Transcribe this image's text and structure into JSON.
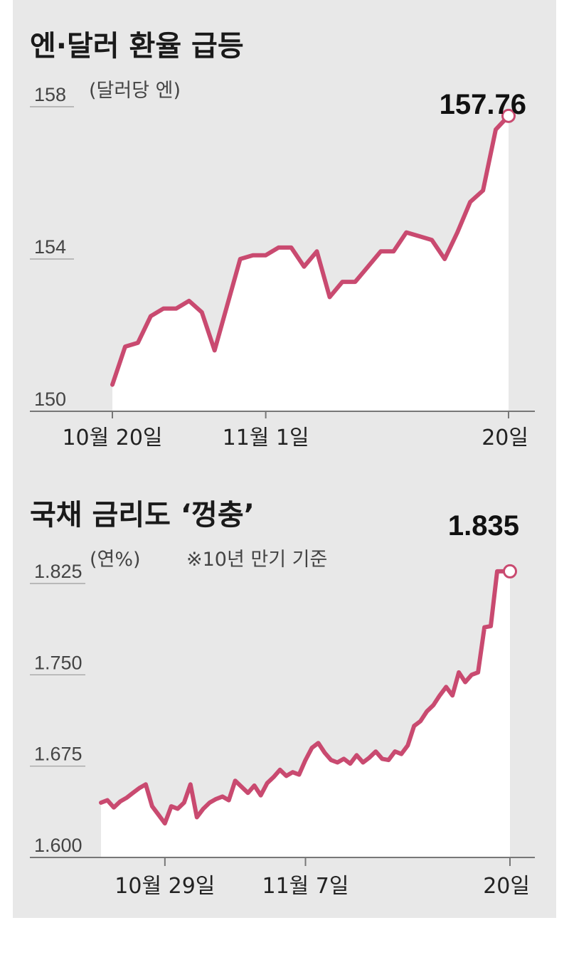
{
  "chart_data": [
    {
      "type": "area",
      "title": "엔·달러 환율 급등",
      "unit": "(달러당 엔)",
      "ylim": [
        150,
        158
      ],
      "yticks": [
        "150",
        "154",
        "158"
      ],
      "xticks": [
        {
          "label": "10월 20일",
          "x": 0
        },
        {
          "label": "11월 1일",
          "x": 12
        },
        {
          "label": "20일",
          "x": 31
        }
      ],
      "end_label": "157.76",
      "color": "#c94a70",
      "series": [
        {
          "x": [
            0,
            1,
            2,
            3,
            4,
            5,
            6,
            7,
            8,
            9,
            10,
            11,
            12,
            13,
            14,
            15,
            16,
            17,
            18,
            19,
            20,
            21,
            22,
            23,
            24,
            25,
            26,
            27,
            28,
            29,
            30,
            31
          ],
          "values": [
            150.7,
            151.7,
            151.8,
            152.5,
            152.7,
            152.7,
            152.9,
            152.6,
            151.6,
            152.8,
            154.0,
            154.1,
            154.1,
            154.3,
            154.3,
            153.8,
            154.2,
            153.0,
            153.4,
            153.4,
            153.8,
            154.2,
            154.2,
            154.7,
            154.6,
            154.5,
            154.0,
            154.7,
            155.5,
            155.8,
            157.4,
            157.76
          ]
        }
      ]
    },
    {
      "type": "area",
      "title": "국채 금리도 ‘껑충’",
      "unit": "(연%)",
      "note": "※10년 만기 기준",
      "ylim": [
        1.6,
        1.825
      ],
      "yticks": [
        "1.600",
        "1.675",
        "1.750",
        "1.825"
      ],
      "xticks": [
        {
          "label": "10월 29일",
          "x": 5
        },
        {
          "label": "11월 7일",
          "x": 16
        },
        {
          "label": "20일",
          "x": 32
        }
      ],
      "end_label": "1.835",
      "color": "#c94a70",
      "series": [
        {
          "x": [
            0,
            0.5,
            1,
            1.5,
            2,
            2.5,
            3,
            3.5,
            4,
            4.5,
            5,
            5.5,
            6,
            6.5,
            7,
            7.5,
            8,
            8.5,
            9,
            9.5,
            10,
            10.5,
            11,
            11.5,
            12,
            12.5,
            13,
            13.5,
            14,
            14.5,
            15,
            15.5,
            16,
            16.5,
            17,
            17.5,
            18,
            18.5,
            19,
            19.5,
            20,
            20.5,
            21,
            21.5,
            22,
            22.5,
            23,
            23.5,
            24,
            24.5,
            25,
            25.5,
            26,
            26.5,
            27,
            27.5,
            28,
            28.5,
            29,
            29.5,
            30,
            30.5,
            31,
            31.5,
            32
          ],
          "values": [
            1.645,
            1.647,
            1.641,
            1.646,
            1.649,
            1.653,
            1.657,
            1.66,
            1.642,
            1.635,
            1.628,
            1.642,
            1.64,
            1.645,
            1.66,
            1.633,
            1.64,
            1.645,
            1.648,
            1.65,
            1.647,
            1.663,
            1.658,
            1.653,
            1.659,
            1.651,
            1.661,
            1.666,
            1.672,
            1.667,
            1.67,
            1.668,
            1.68,
            1.69,
            1.694,
            1.686,
            1.68,
            1.678,
            1.681,
            1.677,
            1.684,
            1.678,
            1.682,
            1.687,
            1.681,
            1.68,
            1.687,
            1.685,
            1.692,
            1.708,
            1.712,
            1.72,
            1.725,
            1.733,
            1.74,
            1.733,
            1.752,
            1.744,
            1.75,
            1.752,
            1.789,
            1.79,
            1.835,
            1.835,
            1.835
          ]
        }
      ]
    }
  ]
}
